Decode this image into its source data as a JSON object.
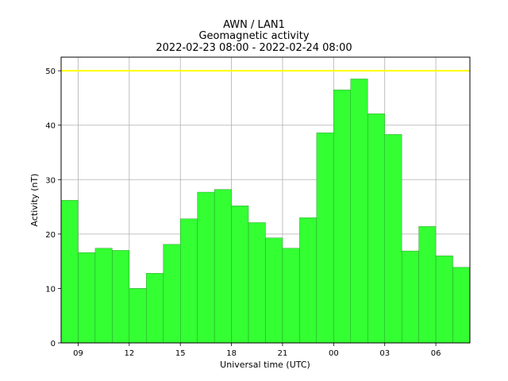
{
  "chart_data": {
    "type": "bar",
    "title": [
      "AWN / LAN1",
      "Geomagnetic activity",
      "2022-02-23 08:00 - 2022-02-24 08:00"
    ],
    "xlabel": "Universal time (UTC)",
    "ylabel": "Activity (nT)",
    "x_tick_labels": [
      "09",
      "12",
      "15",
      "18",
      "21",
      "00",
      "03",
      "06"
    ],
    "x_tick_hours": [
      1,
      4,
      7,
      10,
      13,
      16,
      19,
      22
    ],
    "y_ticks": [
      0,
      10,
      20,
      30,
      40,
      50
    ],
    "ylim": [
      0,
      52.5
    ],
    "xlim_hours": [
      0,
      24
    ],
    "bar_start_hour": 0,
    "bar_width_hours": 1,
    "values": [
      26.2,
      16.6,
      17.4,
      17.0,
      10.0,
      12.8,
      18.1,
      22.8,
      27.7,
      28.2,
      25.2,
      22.1,
      19.3,
      17.4,
      23.0,
      38.6,
      46.5,
      48.5,
      42.1,
      38.3,
      16.9,
      21.4,
      16.0,
      13.9
    ],
    "threshold": 50,
    "colors": {
      "bar": "#33ff33",
      "bar_edge": "#2a8a2a",
      "threshold": "#ffff00",
      "grid": "#b0b0b0"
    },
    "grid": true
  }
}
